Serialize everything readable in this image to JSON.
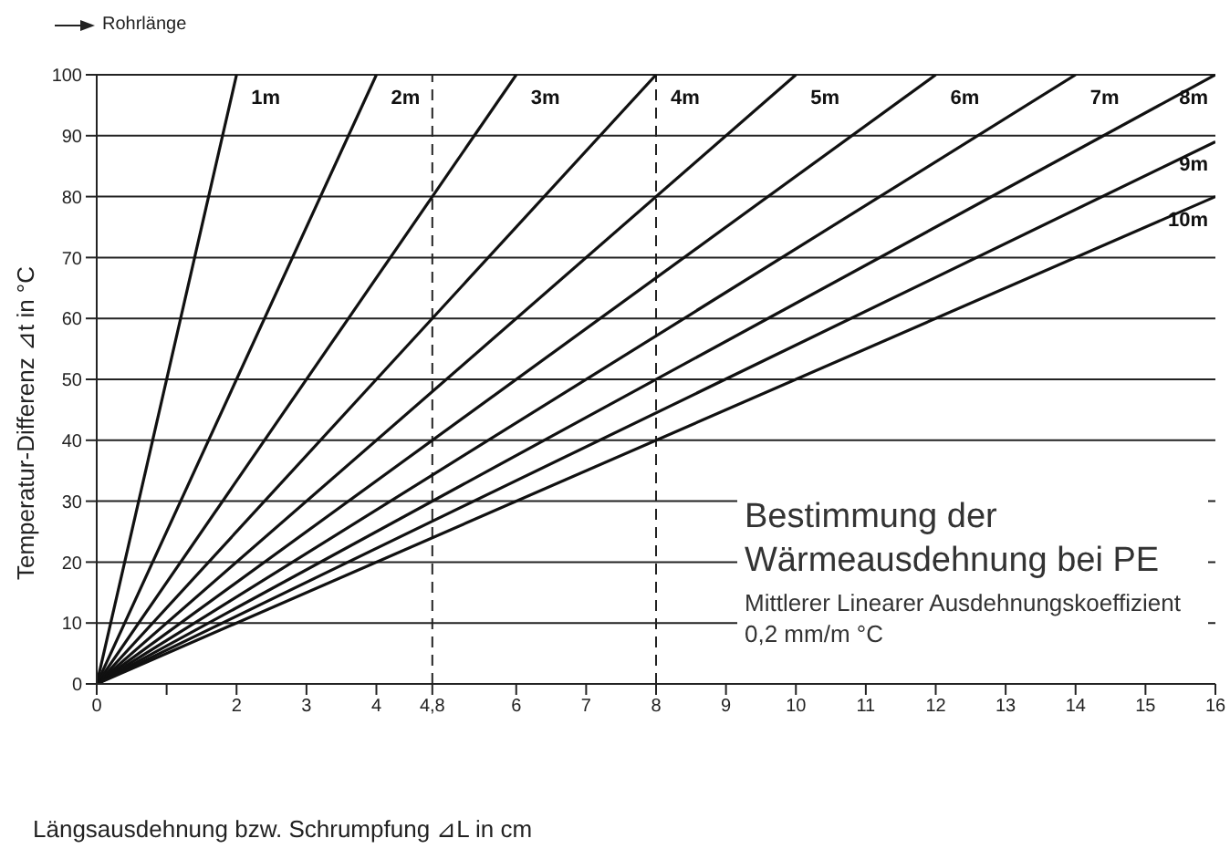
{
  "chart_data": {
    "type": "line",
    "title": "Bestimmung der Wärmeausdehnung bei PE",
    "subtitle": "Mittlerer Linearer Ausdehnungskoeffizient 0,2 mm/m °C",
    "xlabel": "Längsausdehnung bzw. Schrumpfung ⊿L in cm",
    "ylabel": "Temperatur-Differenz ⊿t in °C",
    "annotations": [
      "Rohrlänge"
    ],
    "xlim": [
      0,
      16
    ],
    "ylim": [
      0,
      100
    ],
    "xticks": [
      0,
      {
        "value": 1,
        "label": null
      },
      2,
      3,
      4,
      {
        "value": 4.8,
        "label": "4,8"
      },
      6,
      7,
      8,
      9,
      10,
      11,
      12,
      13,
      14,
      15,
      16
    ],
    "yticks": [
      0,
      10,
      20,
      30,
      40,
      50,
      60,
      70,
      80,
      90,
      100
    ],
    "grid": "y",
    "marker": "none",
    "line_style": "solid",
    "ref_lines": [
      {
        "axis": "x",
        "value": 4.8,
        "line_style": "dashed"
      },
      {
        "axis": "x",
        "value": 8,
        "line_style": "dashed"
      }
    ],
    "series": [
      {
        "name": "1m",
        "color": "#111111",
        "x": [
          0,
          2
        ],
        "values": [
          0,
          100
        ]
      },
      {
        "name": "2m",
        "color": "#111111",
        "x": [
          0,
          4
        ],
        "values": [
          0,
          100
        ]
      },
      {
        "name": "3m",
        "color": "#111111",
        "x": [
          0,
          6
        ],
        "values": [
          0,
          100
        ]
      },
      {
        "name": "4m",
        "color": "#111111",
        "x": [
          0,
          8
        ],
        "values": [
          0,
          100
        ]
      },
      {
        "name": "5m",
        "color": "#111111",
        "x": [
          0,
          10
        ],
        "values": [
          0,
          100
        ]
      },
      {
        "name": "6m",
        "color": "#111111",
        "x": [
          0,
          12
        ],
        "values": [
          0,
          100
        ]
      },
      {
        "name": "7m",
        "color": "#111111",
        "x": [
          0,
          14
        ],
        "values": [
          0,
          100
        ]
      },
      {
        "name": "8m",
        "color": "#111111",
        "x": [
          0,
          16
        ],
        "values": [
          0,
          100
        ]
      },
      {
        "name": "9m",
        "color": "#111111",
        "x": [
          0,
          16
        ],
        "values": [
          0,
          89
        ]
      },
      {
        "name": "10m",
        "color": "#111111",
        "x": [
          0,
          16
        ],
        "values": [
          0,
          80
        ]
      }
    ]
  }
}
